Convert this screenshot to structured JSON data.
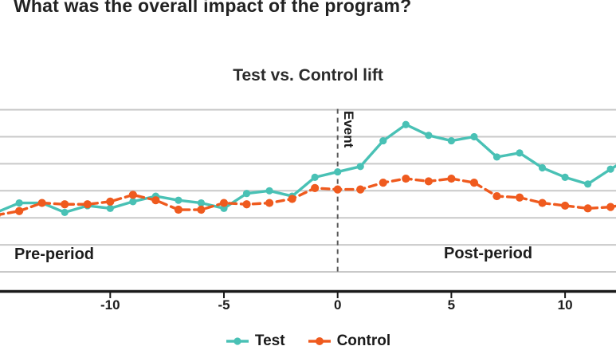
{
  "page": {
    "title": "What was the overall impact of the program?"
  },
  "chart_data": {
    "type": "line",
    "title": "Test vs. Control lift",
    "xlabel": "",
    "ylabel": "",
    "x": [
      -15,
      -14,
      -13,
      -12,
      -11,
      -10,
      -9,
      -8,
      -7,
      -6,
      -5,
      -4,
      -3,
      -2,
      -1,
      0,
      1,
      2,
      3,
      4,
      5,
      6,
      7,
      8,
      9,
      10,
      11,
      12,
      13
    ],
    "series": [
      {
        "name": "Test",
        "color": "#49C1B5",
        "line_style": "solid",
        "values": [
          2.2,
          2.55,
          2.55,
          2.2,
          2.45,
          2.35,
          2.6,
          2.8,
          2.65,
          2.55,
          2.35,
          2.9,
          3.0,
          2.8,
          3.5,
          3.7,
          3.9,
          4.85,
          5.45,
          5.05,
          4.85,
          5.0,
          4.25,
          4.4,
          3.85,
          3.5,
          3.25,
          3.8,
          4.3
        ]
      },
      {
        "name": "Control",
        "color": "#EF5A1E",
        "line_style": "dashed",
        "values": [
          2.1,
          2.25,
          2.55,
          2.5,
          2.5,
          2.6,
          2.85,
          2.65,
          2.3,
          2.3,
          2.55,
          2.5,
          2.55,
          2.7,
          3.1,
          3.05,
          3.05,
          3.3,
          3.45,
          3.35,
          3.45,
          3.3,
          2.8,
          2.75,
          2.55,
          2.45,
          2.35,
          2.4,
          2.55
        ]
      }
    ],
    "x_ticks": [
      -10,
      -5,
      0,
      5,
      10
    ],
    "ylim": [
      0,
      6
    ],
    "y_gridlines": [
      0,
      1,
      2,
      3,
      4,
      5,
      6
    ],
    "y_tick_labels_visible": false,
    "event_x": 0,
    "annotations": {
      "pre_period": "Pre-period",
      "post_period": "Post-period",
      "event": "Event"
    },
    "legend_position": "bottom",
    "colors": {
      "gridline": "#c9c9c9",
      "axis": "#1a1a1a",
      "event_line": "#5a5a5a"
    }
  }
}
